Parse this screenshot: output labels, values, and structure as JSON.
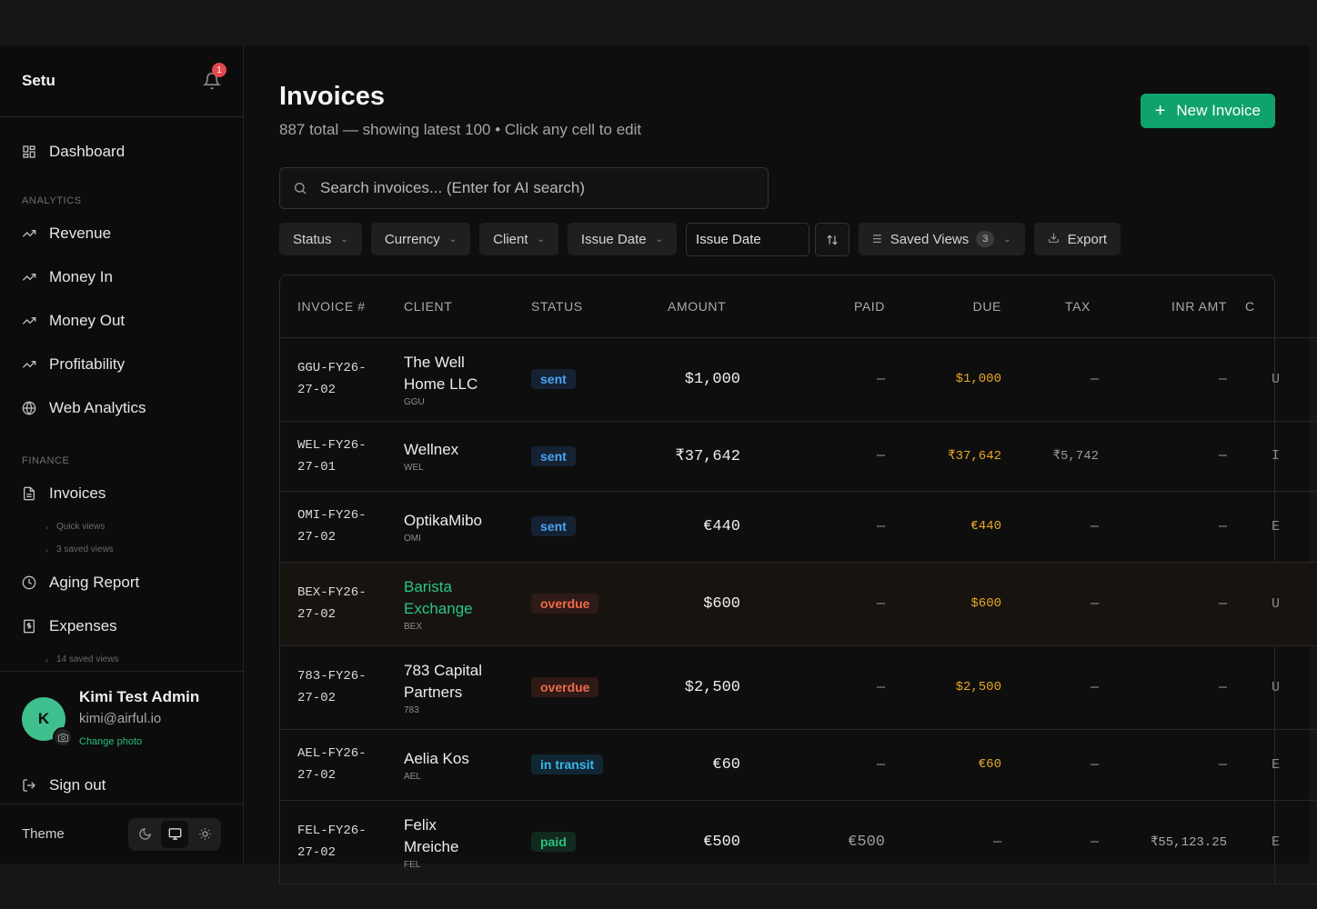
{
  "sidebar": {
    "brand": "Setu",
    "notification_count": "1",
    "dashboard": "Dashboard",
    "analytics_label": "ANALYTICS",
    "analytics_items": [
      "Revenue",
      "Money In",
      "Money Out",
      "Profitability",
      "Web Analytics"
    ],
    "finance_label": "FINANCE",
    "invoices": "Invoices",
    "invoice_sub": [
      "Quick views",
      "3 saved views"
    ],
    "aging": "Aging Report",
    "expenses": "Expenses",
    "expenses_sub": "14 saved views",
    "user": {
      "initial": "K",
      "name": "Kimi Test Admin",
      "email": "kimi@airful.io",
      "change_photo": "Change photo"
    },
    "sign_out": "Sign out",
    "theme_label": "Theme"
  },
  "header": {
    "title": "Invoices",
    "subtitle": "887 total — showing latest 100 • Click any cell to edit",
    "new_button": "New Invoice"
  },
  "search": {
    "placeholder": "Search invoices... (Enter for AI search)"
  },
  "filters": {
    "status": "Status",
    "currency": "Currency",
    "client": "Client",
    "issue_date": "Issue Date",
    "sort_field": "Issue Date",
    "saved_views": "Saved Views",
    "saved_views_count": "3",
    "export": "Export"
  },
  "table": {
    "columns": [
      "INVOICE #",
      "CLIENT",
      "STATUS",
      "AMOUNT",
      "PAID",
      "DUE",
      "TAX",
      "INR AMT",
      "C"
    ],
    "rows": [
      {
        "inv1": "GGU-FY26-",
        "inv2": "27-02",
        "client1": "The Well",
        "client2": "Home LLC",
        "code": "GGU",
        "status": "sent",
        "amount": "$1,000",
        "paid": "—",
        "due": "$1,000",
        "tax": "—",
        "inr": "—",
        "cur": "U"
      },
      {
        "inv1": "WEL-FY26-",
        "inv2": "27-01",
        "client1": "Wellnex",
        "client2": "",
        "code": "WEL",
        "status": "sent",
        "amount": "₹37,642",
        "paid": "—",
        "due": "₹37,642",
        "tax": "₹5,742",
        "inr": "—",
        "cur": "I"
      },
      {
        "inv1": "OMI-FY26-",
        "inv2": "27-02",
        "client1": "OptikaMibo",
        "client2": "",
        "code": "OMI",
        "status": "sent",
        "amount": "€440",
        "paid": "—",
        "due": "€440",
        "tax": "—",
        "inr": "—",
        "cur": "E"
      },
      {
        "inv1": "BEX-FY26-",
        "inv2": "27-02",
        "client1": "Barista",
        "client2": "Exchange",
        "code": "BEX",
        "status": "overdue",
        "amount": "$600",
        "paid": "—",
        "due": "$600",
        "tax": "—",
        "inr": "—",
        "cur": "U"
      },
      {
        "inv1": "783-FY26-",
        "inv2": "27-02",
        "client1": "783 Capital",
        "client2": "Partners",
        "code": "783",
        "status": "overdue",
        "amount": "$2,500",
        "paid": "—",
        "due": "$2,500",
        "tax": "—",
        "inr": "—",
        "cur": "U"
      },
      {
        "inv1": "AEL-FY26-",
        "inv2": "27-02",
        "client1": "Aelia Kos",
        "client2": "",
        "code": "AEL",
        "status": "in transit",
        "amount": "€60",
        "paid": "—",
        "due": "€60",
        "tax": "—",
        "inr": "—",
        "cur": "E"
      },
      {
        "inv1": "FEL-FY26-",
        "inv2": "27-02",
        "client1": "Felix",
        "client2": "Mreiche",
        "code": "FEL",
        "status": "paid",
        "amount": "€500",
        "paid": "€500",
        "due": "—",
        "tax": "—",
        "inr": "₹55,123.25",
        "cur": "E"
      }
    ]
  },
  "colors": {
    "accent": "#0fa36b",
    "overdue": "#f06a4a",
    "sent": "#4aa3f0",
    "due": "#e8a628"
  }
}
